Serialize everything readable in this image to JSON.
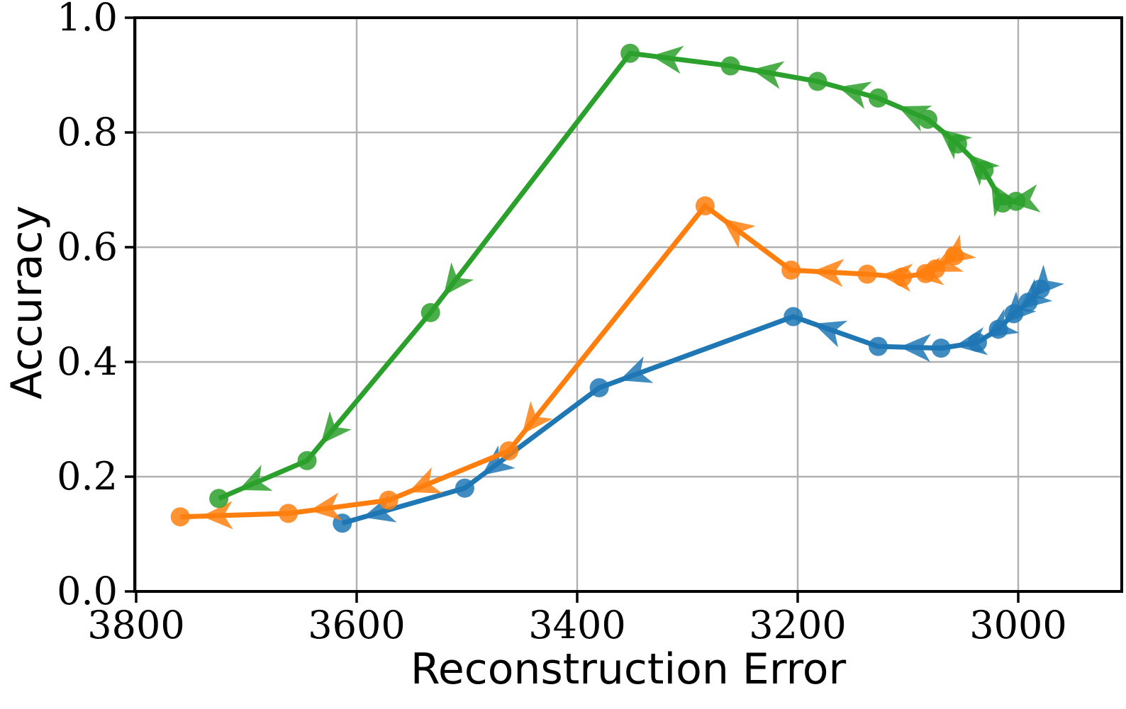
{
  "chart_data": {
    "type": "line",
    "title": "",
    "xlabel": "Reconstruction Error",
    "ylabel": "Accuracy",
    "grid": true,
    "legend": "none",
    "x_axis": {
      "inverted": true,
      "range_left": 3801,
      "range_right": 2906,
      "ticks": [
        3800,
        3600,
        3400,
        3200,
        3000
      ],
      "tick_labels": [
        "3800",
        "3600",
        "3400",
        "3200",
        "3000"
      ]
    },
    "y_axis": {
      "range": [
        0.0,
        1.0
      ],
      "ticks": [
        0.0,
        0.2,
        0.4,
        0.6,
        0.8,
        1.0
      ],
      "tick_labels": [
        "0.0",
        "0.2",
        "0.4",
        "0.6",
        "0.8",
        "1.0"
      ]
    },
    "arrow_semantics": "arrows on each segment point from earlier point to next point along the trajectory",
    "series": [
      {
        "name": "blue-trajectory",
        "color": "#1f77b4",
        "points": [
          [
            2980,
            0.527
          ],
          [
            2991,
            0.504
          ],
          [
            3004,
            0.484
          ],
          [
            3018,
            0.457
          ],
          [
            3037,
            0.434
          ],
          [
            3070,
            0.424
          ],
          [
            3127,
            0.427
          ],
          [
            3204,
            0.479
          ],
          [
            3380,
            0.355
          ],
          [
            3502,
            0.18
          ],
          [
            3613,
            0.119
          ]
        ]
      },
      {
        "name": "orange-trajectory",
        "color": "#ff7f0e",
        "points": [
          [
            3058,
            0.585
          ],
          [
            3075,
            0.562
          ],
          [
            3084,
            0.554
          ],
          [
            3105,
            0.548
          ],
          [
            3137,
            0.553
          ],
          [
            3206,
            0.56
          ],
          [
            3284,
            0.672
          ],
          [
            3462,
            0.245
          ],
          [
            3571,
            0.159
          ],
          [
            3662,
            0.136
          ],
          [
            3760,
            0.13
          ]
        ]
      },
      {
        "name": "green-trajectory",
        "color": "#2ca02c",
        "points": [
          [
            3002,
            0.68
          ],
          [
            3014,
            0.677
          ],
          [
            3031,
            0.734
          ],
          [
            3055,
            0.78
          ],
          [
            3082,
            0.823
          ],
          [
            3127,
            0.86
          ],
          [
            3182,
            0.889
          ],
          [
            3261,
            0.916
          ],
          [
            3352,
            0.938
          ],
          [
            3533,
            0.486
          ],
          [
            3645,
            0.228
          ],
          [
            3725,
            0.162
          ]
        ]
      }
    ]
  },
  "styles": {
    "background": "#ffffff",
    "grid_color": "#b0b0b0",
    "spine_color": "#000000",
    "tick_color": "#000000"
  }
}
